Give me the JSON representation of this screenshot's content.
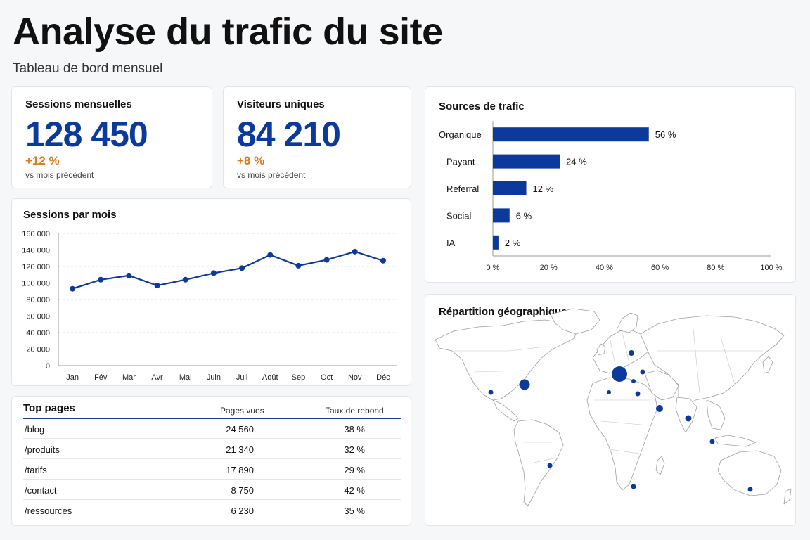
{
  "header": {
    "title": "Analyse du trafic du site",
    "subtitle": "Tableau de bord mensuel"
  },
  "kpis": [
    {
      "label": "Sessions mensuelles",
      "value": "128 450",
      "delta": "+12 %",
      "note": "vs mois précédent"
    },
    {
      "label": "Visiteurs uniques",
      "value": "84 210",
      "delta": "+8 %",
      "note": "vs mois précédent"
    }
  ],
  "colors": {
    "accent": "#0b3a9c",
    "delta": "#e07a1f"
  },
  "chart_data": [
    {
      "type": "line",
      "title": "Sessions par mois",
      "x": [
        "Jan",
        "Fév",
        "Mar",
        "Avr",
        "Mai",
        "Juin",
        "Juil",
        "Août",
        "Sep",
        "Oct",
        "Nov",
        "Déc"
      ],
      "values": [
        93000,
        104000,
        109000,
        97000,
        104000,
        112000,
        118000,
        134000,
        121000,
        128000,
        138000,
        127000
      ],
      "ylim": [
        0,
        160000
      ],
      "yticks": [
        0,
        20000,
        40000,
        60000,
        80000,
        100000,
        120000,
        140000,
        160000
      ],
      "ytick_labels": [
        "0",
        "20 000",
        "40 000",
        "60 000",
        "80 000",
        "100 000",
        "120 000",
        "140 000",
        "160 000"
      ],
      "grid": true
    },
    {
      "type": "bar",
      "orientation": "horizontal",
      "title": "Sources de trafic",
      "categories": [
        "Organique",
        "Payant",
        "Referral",
        "Social",
        "IA"
      ],
      "values": [
        56,
        24,
        12,
        6,
        2
      ],
      "value_labels": [
        "56 %",
        "24 %",
        "12 %",
        "6 %",
        "2 %"
      ],
      "xlim": [
        0,
        100
      ],
      "xticks": [
        0,
        20,
        40,
        60,
        80,
        100
      ],
      "xtick_labels": [
        "0 %",
        "20 %",
        "40 %",
        "60 %",
        "80 %",
        "100 %"
      ]
    }
  ],
  "table": {
    "title": "Top pages",
    "columns": [
      "Pages vues",
      "Taux de rebond"
    ],
    "rows": [
      {
        "page": "/blog",
        "views": "24 560",
        "bounce": "38 %"
      },
      {
        "page": "/produits",
        "views": "21 340",
        "bounce": "32 %"
      },
      {
        "page": "/tarifs",
        "views": "17 890",
        "bounce": "29 %"
      },
      {
        "page": "/contact",
        "views": "8 750",
        "bounce": "42 %"
      },
      {
        "page": "/ressources",
        "views": "6 230",
        "bounce": "35 %"
      }
    ]
  },
  "map": {
    "title": "Répartition géographique"
  }
}
